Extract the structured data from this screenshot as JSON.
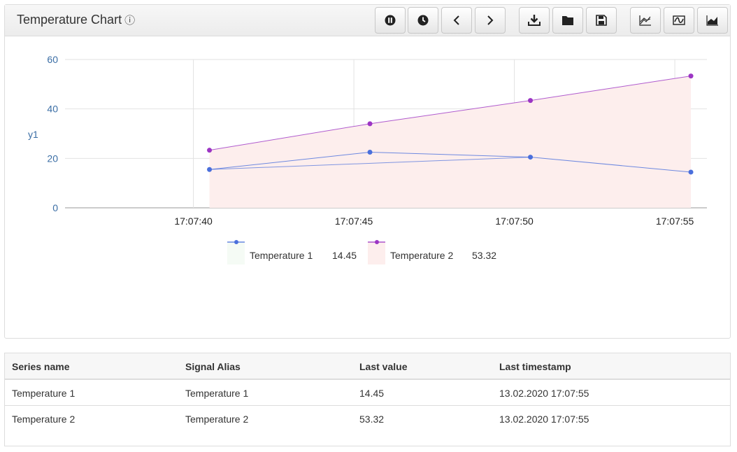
{
  "panel": {
    "title": "Temperature Chart",
    "info_icon": "info-circle-icon"
  },
  "toolbar": {
    "buttons": [
      {
        "name": "pause-button",
        "icon": "pause-icon"
      },
      {
        "name": "history-button",
        "icon": "clock-icon"
      },
      {
        "name": "previous-button",
        "icon": "chevron-left-icon"
      },
      {
        "name": "next-button",
        "icon": "chevron-right-icon"
      },
      {
        "name": "download-button",
        "icon": "download-icon"
      },
      {
        "name": "open-button",
        "icon": "folder-icon"
      },
      {
        "name": "save-button",
        "icon": "floppy-disk-icon"
      },
      {
        "name": "line-chart-button",
        "icon": "line-chart-icon"
      },
      {
        "name": "spline-chart-button",
        "icon": "wave-icon"
      },
      {
        "name": "area-chart-button",
        "icon": "area-chart-icon"
      }
    ]
  },
  "chart_data": {
    "type": "line",
    "title": "",
    "ylabel": "y1",
    "xlabel": "",
    "ylim": [
      0,
      60
    ],
    "yticks": [
      "0",
      "20",
      "40",
      "60"
    ],
    "xticks": [
      {
        "label": "17:07:40",
        "t": 0
      },
      {
        "label": "17:07:45",
        "t": 5
      },
      {
        "label": "17:07:50",
        "t": 10
      },
      {
        "label": "17:07:55",
        "t": 15
      }
    ],
    "xlim_seconds": [
      -4,
      16
    ],
    "grid": true,
    "series": [
      {
        "name": "Temperature 1",
        "color": "#4a6fdc",
        "fill": "#f5fbf5",
        "last_value": "14.45",
        "points": [
          {
            "time": "17:07:40.5",
            "t": 0.5,
            "y": 15.5
          },
          {
            "time": "17:07:45.5",
            "t": 5.5,
            "y": 22.5
          },
          {
            "time": "17:07:50.5",
            "t": 10.5,
            "y": 20.5
          },
          {
            "time": "17:07:55.5",
            "t": 15.5,
            "y": 14.45
          }
        ]
      },
      {
        "name": "Temperature 2",
        "color": "#9c35c4",
        "fill": "#fdeeed",
        "last_value": "53.32",
        "points": [
          {
            "time": "17:07:40.5",
            "t": 0.5,
            "y": 23.3
          },
          {
            "time": "17:07:45.5",
            "t": 5.5,
            "y": 34.0
          },
          {
            "time": "17:07:50.5",
            "t": 10.5,
            "y": 43.4
          },
          {
            "time": "17:07:55.5",
            "t": 15.5,
            "y": 53.32
          }
        ]
      }
    ],
    "extra_line": {
      "series": "Temperature 1",
      "from_index": 0,
      "to_index": 2
    }
  },
  "table": {
    "headers": [
      "Series name",
      "Signal Alias",
      "Last value",
      "Last timestamp"
    ],
    "rows": [
      [
        "Temperature 1",
        "Temperature 1",
        "14.45",
        "13.02.2020 17:07:55"
      ],
      [
        "Temperature 2",
        "Temperature 2",
        "53.32",
        "13.02.2020 17:07:55"
      ]
    ]
  }
}
